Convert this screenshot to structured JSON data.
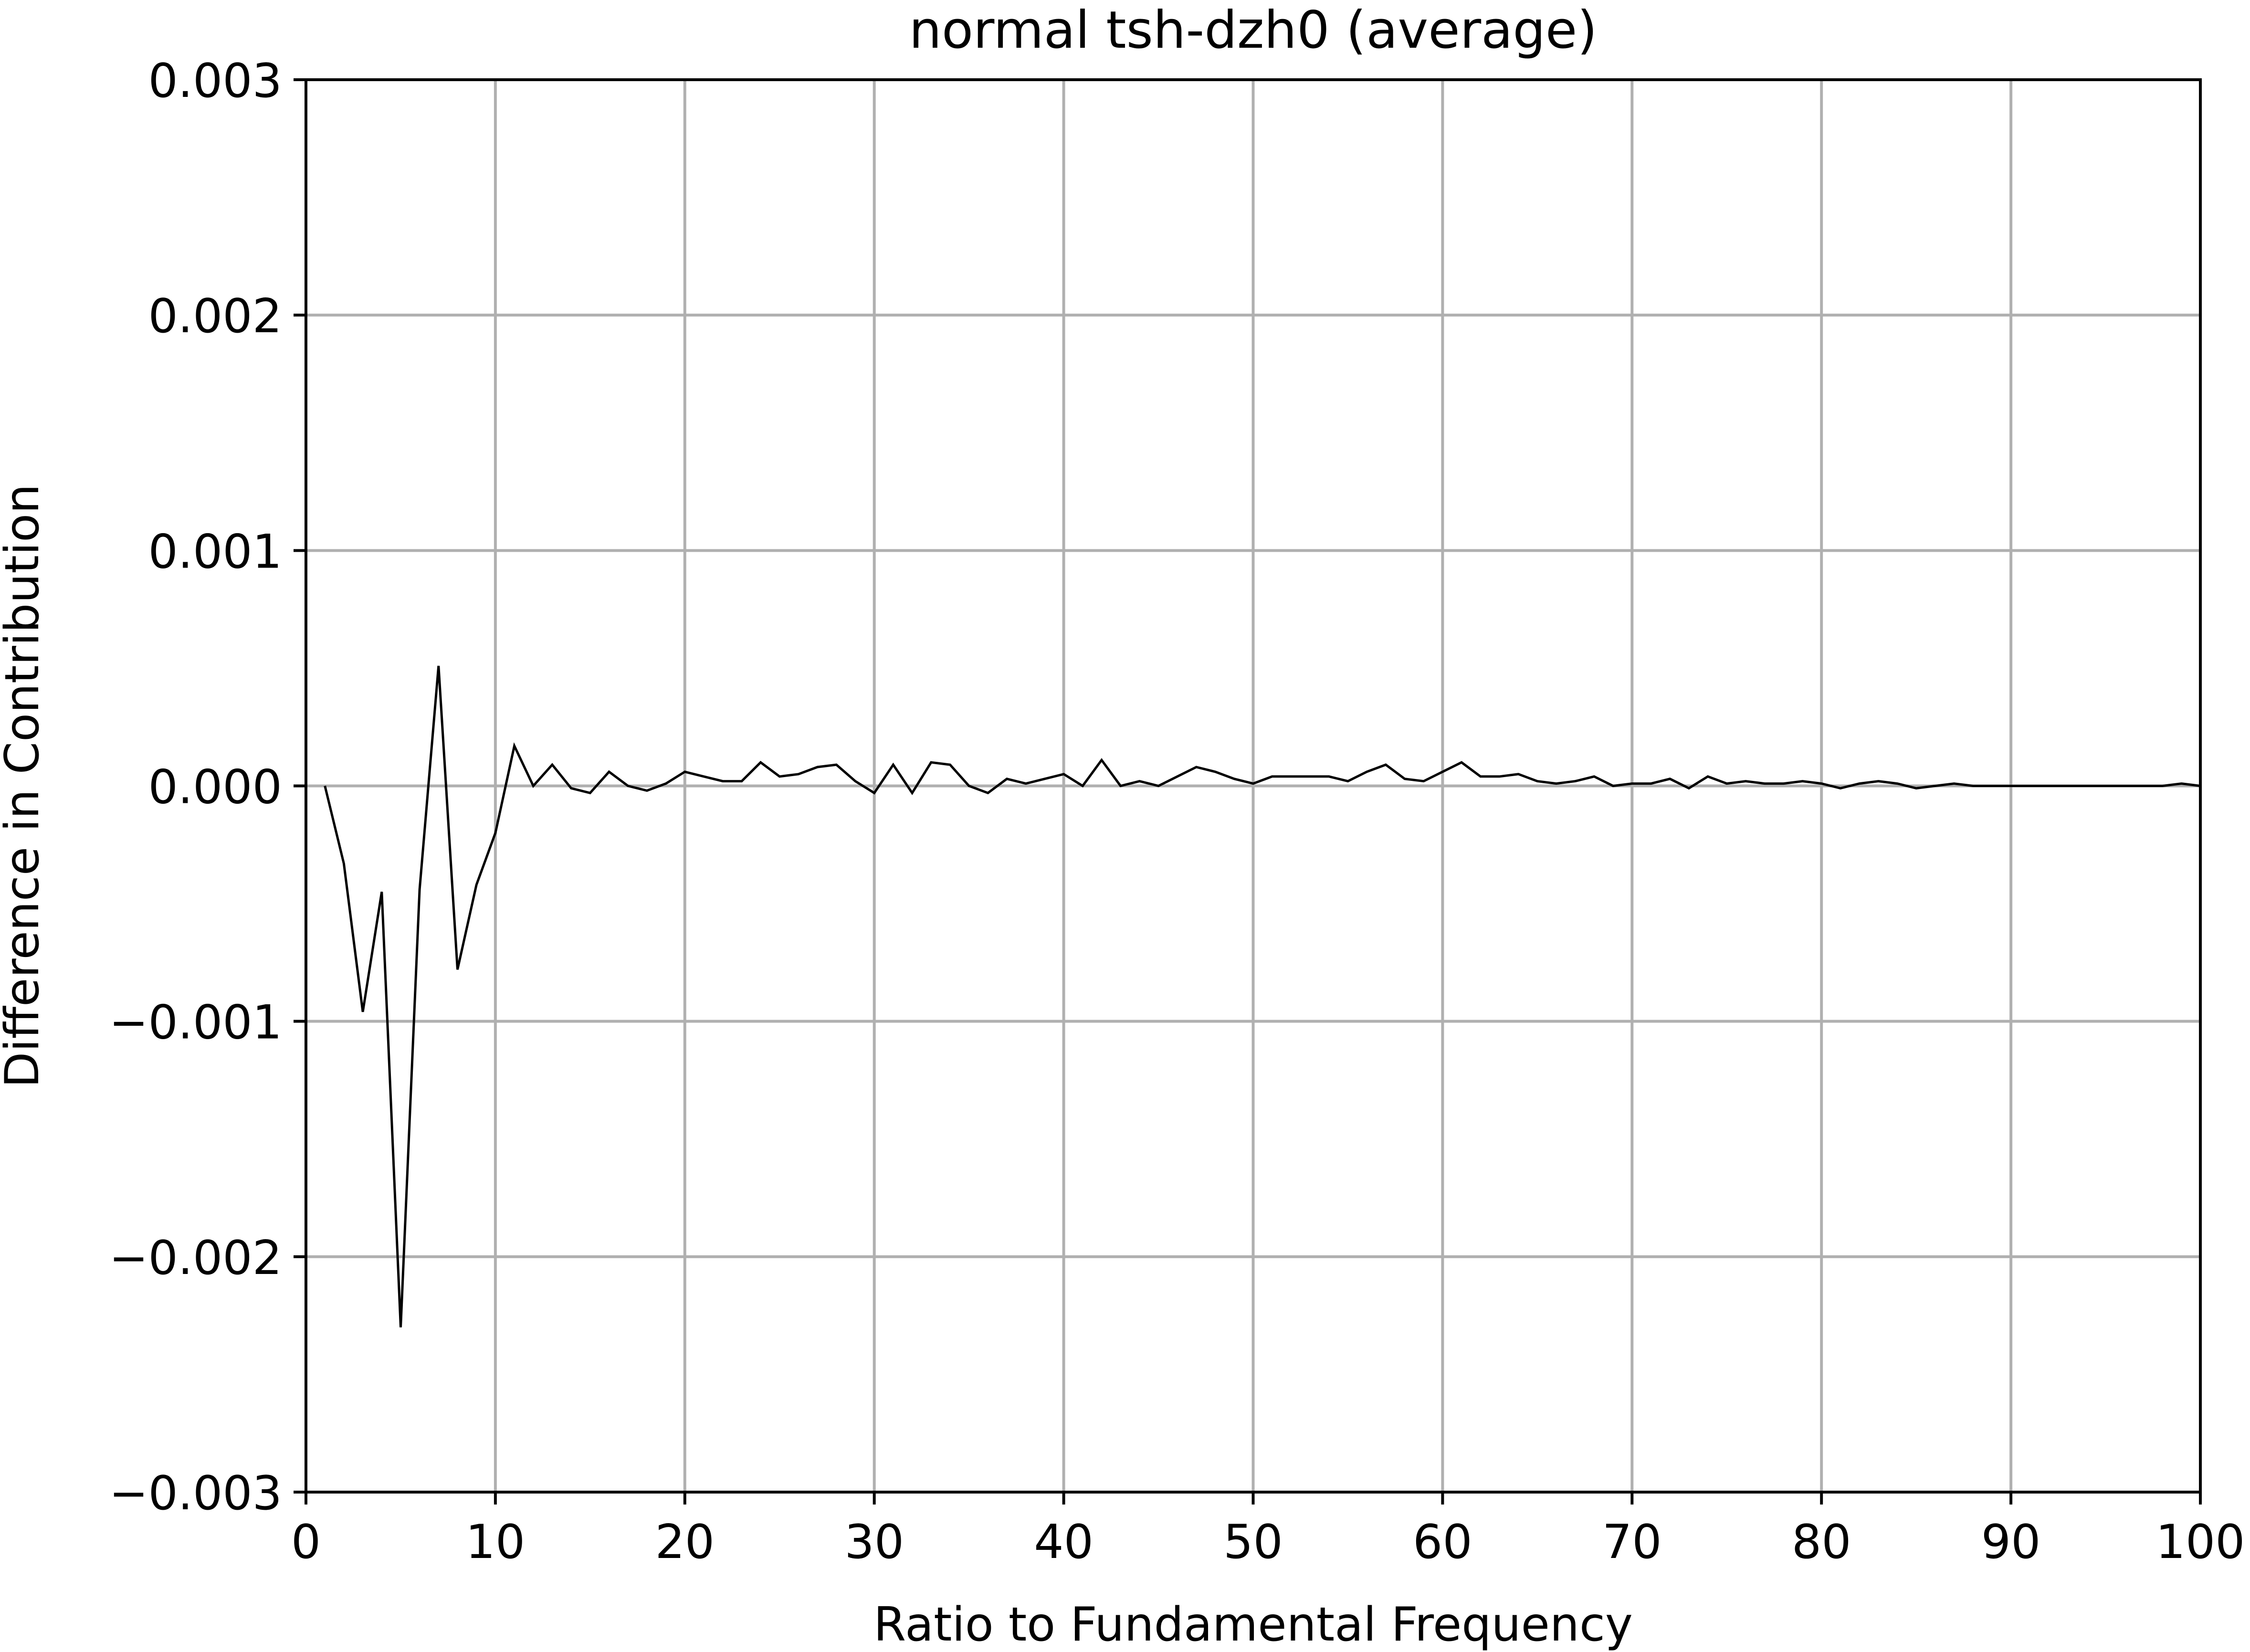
{
  "chart_data": {
    "type": "line",
    "title": "normal tsh-dzh0 (average)",
    "xlabel": "Ratio to Fundamental Frequency",
    "ylabel": "Difference in Contribution",
    "xlim": [
      0,
      100
    ],
    "ylim": [
      -0.003,
      0.003
    ],
    "grid": true,
    "x_ticks": [
      0,
      10,
      20,
      30,
      40,
      50,
      60,
      70,
      80,
      90,
      100
    ],
    "x_tick_labels": [
      "0",
      "10",
      "20",
      "30",
      "40",
      "50",
      "60",
      "70",
      "80",
      "90",
      "100"
    ],
    "y_ticks": [
      -0.003,
      -0.002,
      -0.001,
      0.0,
      0.001,
      0.002,
      0.003
    ],
    "y_tick_labels": [
      "−0.003",
      "−0.002",
      "−0.001",
      "0.000",
      "0.001",
      "0.002",
      "0.003"
    ],
    "line_color": "#000000",
    "grid_color": "#b0b0b0",
    "series": [
      {
        "x": [
          1,
          2,
          3,
          4,
          5,
          6,
          7,
          8,
          9,
          10,
          11,
          12,
          13,
          14,
          15,
          16,
          17,
          18,
          19,
          20,
          21,
          22,
          23,
          24,
          25,
          26,
          27,
          28,
          29,
          30,
          31,
          32,
          33,
          34,
          35,
          36,
          37,
          38,
          39,
          40,
          41,
          42,
          43,
          44,
          45,
          46,
          47,
          48,
          49,
          50,
          51,
          52,
          53,
          54,
          55,
          56,
          57,
          58,
          59,
          60,
          61,
          62,
          63,
          64,
          65,
          66,
          67,
          68,
          69,
          70,
          71,
          72,
          73,
          74,
          75,
          76,
          77,
          78,
          79,
          80,
          81,
          82,
          83,
          84,
          85,
          86,
          87,
          88,
          89,
          90,
          91,
          92,
          93,
          94,
          95,
          96,
          97,
          98,
          99,
          100
        ],
        "values": [
          0.0,
          -0.00033,
          -0.00096,
          -0.00045,
          -0.0023,
          -0.00044,
          0.00051,
          -0.00078,
          -0.00042,
          -0.0002,
          0.00017,
          0.0,
          9e-05,
          -1e-05,
          -3e-05,
          6e-05,
          0.0,
          -2e-05,
          1e-05,
          6e-05,
          4e-05,
          2e-05,
          2e-05,
          0.0001,
          4e-05,
          5e-05,
          8e-05,
          9e-05,
          2e-05,
          -3e-05,
          9e-05,
          -3e-05,
          0.0001,
          9e-05,
          0.0,
          -3e-05,
          3e-05,
          1e-05,
          3e-05,
          5e-05,
          0.0,
          0.00011,
          0.0,
          2e-05,
          0.0,
          4e-05,
          8e-05,
          6e-05,
          3e-05,
          1e-05,
          4e-05,
          4e-05,
          4e-05,
          4e-05,
          2e-05,
          6e-05,
          9e-05,
          3e-05,
          2e-05,
          6e-05,
          0.0001,
          4e-05,
          4e-05,
          5e-05,
          2e-05,
          1e-05,
          2e-05,
          4e-05,
          0.0,
          1e-05,
          1e-05,
          3e-05,
          -1e-05,
          4e-05,
          1e-05,
          2e-05,
          1e-05,
          1e-05,
          2e-05,
          1e-05,
          -1e-05,
          1e-05,
          2e-05,
          1e-05,
          -1e-05,
          0.0,
          1e-05,
          0.0,
          0.0,
          0.0,
          0.0,
          0.0,
          0.0,
          0.0,
          0.0,
          0.0,
          0.0,
          0.0,
          1e-05,
          0.0
        ]
      }
    ]
  }
}
